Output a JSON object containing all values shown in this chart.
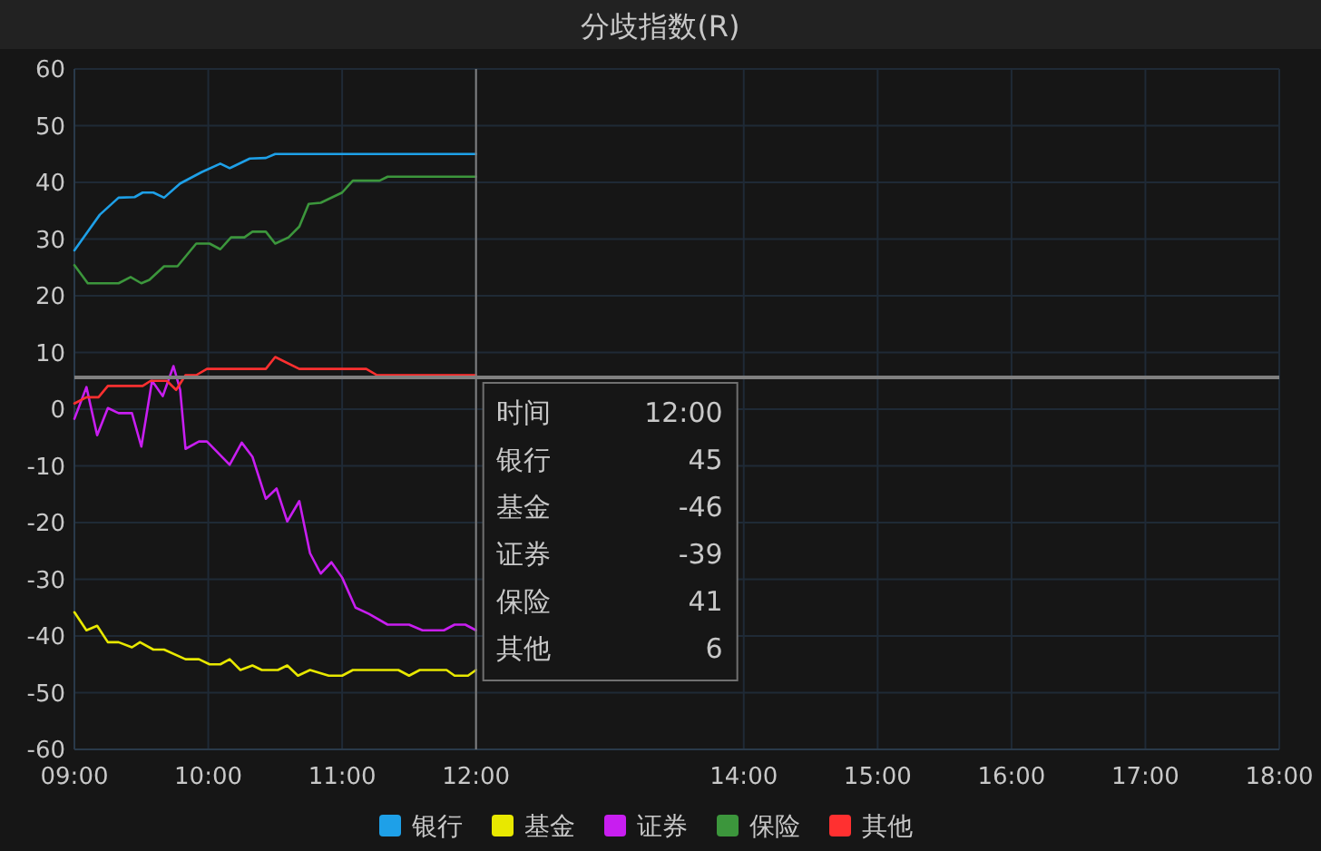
{
  "chart_data": {
    "type": "line",
    "title": "分歧指数(R)",
    "xlim": [
      9,
      18
    ],
    "xticks": [
      {
        "value": 9,
        "label": "09:00"
      },
      {
        "value": 10,
        "label": "10:00"
      },
      {
        "value": 11,
        "label": "11:00"
      },
      {
        "value": 12,
        "label": "12:00"
      },
      {
        "value": 14,
        "label": "14:00"
      },
      {
        "value": 15,
        "label": "15:00"
      },
      {
        "value": 16,
        "label": "16:00"
      },
      {
        "value": 17,
        "label": "17:00"
      },
      {
        "value": 18,
        "label": "18:00"
      }
    ],
    "ylim": [
      -60,
      60
    ],
    "yticks": [
      -60,
      -50,
      -40,
      -30,
      -20,
      -10,
      0,
      10,
      20,
      30,
      40,
      50,
      60
    ],
    "grid": true,
    "legend": "bottom",
    "marker": "none",
    "line_style": "solid",
    "ref_lines": [
      {
        "axis": "x",
        "value": 12,
        "color": "#808080"
      },
      {
        "axis": "y",
        "value": 5.6,
        "color": "#808080"
      }
    ],
    "annotations": [
      "时间 12:00",
      "银行 45",
      "基金 -46",
      "证券 -39",
      "保险 41",
      "其他 6"
    ],
    "series": [
      {
        "name": "银行",
        "color": "#1ea0e8",
        "x": [
          9,
          9.19,
          9.33,
          9.45,
          9.51,
          9.59,
          9.67,
          9.79,
          9.95,
          10.09,
          10.16,
          10.31,
          10.43,
          10.5,
          12
        ],
        "values": [
          28,
          34.3,
          37.3,
          37.4,
          38.2,
          38.2,
          37.3,
          39.8,
          41.8,
          43.3,
          42.5,
          44.2,
          44.3,
          45,
          45
        ]
      },
      {
        "name": "基金",
        "color": "#e8e800",
        "x": [
          9,
          9.09,
          9.17,
          9.25,
          9.33,
          9.43,
          9.49,
          9.59,
          9.67,
          9.83,
          9.93,
          10.01,
          10.09,
          10.16,
          10.24,
          10.33,
          10.4,
          10.52,
          10.59,
          10.67,
          10.76,
          10.9,
          11,
          11.08,
          11.42,
          11.5,
          11.58,
          11.78,
          11.84,
          11.94,
          12
        ],
        "values": [
          -35.8,
          -39,
          -38.2,
          -41.1,
          -41.1,
          -42,
          -41.1,
          -42.4,
          -42.4,
          -44.1,
          -44.1,
          -45,
          -45,
          -44.1,
          -46,
          -45.2,
          -46,
          -46,
          -45.2,
          -47,
          -46,
          -47,
          -47,
          -46,
          -46,
          -47,
          -46,
          -46,
          -47,
          -47,
          -46
        ]
      },
      {
        "name": "证券",
        "color": "#c81ef0",
        "x": [
          9,
          9.09,
          9.17,
          9.25,
          9.33,
          9.43,
          9.5,
          9.58,
          9.66,
          9.74,
          9.79,
          9.83,
          9.93,
          9.99,
          10.16,
          10.25,
          10.33,
          10.43,
          10.51,
          10.59,
          10.68,
          10.76,
          10.84,
          10.92,
          11,
          11.1,
          11.2,
          11.34,
          11.5,
          11.6,
          11.76,
          11.84,
          11.92,
          12
        ],
        "values": [
          -1.7,
          3.9,
          -4.6,
          0.2,
          -0.7,
          -0.7,
          -6.6,
          5,
          2.3,
          7.6,
          3.4,
          -7,
          -5.7,
          -5.7,
          -9.8,
          -5.9,
          -8.4,
          -15.8,
          -14,
          -19.8,
          -16.2,
          -25.4,
          -29,
          -27,
          -29.7,
          -35,
          -36.1,
          -38,
          -38,
          -39,
          -39,
          -38,
          -38,
          -39
        ]
      },
      {
        "name": "保险",
        "color": "#3c963c",
        "x": [
          9,
          9.1,
          9.33,
          9.42,
          9.5,
          9.56,
          9.67,
          9.77,
          9.91,
          10.01,
          10.09,
          10.17,
          10.27,
          10.33,
          10.43,
          10.5,
          10.6,
          10.68,
          10.75,
          10.84,
          11,
          11.08,
          11.28,
          11.34,
          12
        ],
        "values": [
          25.4,
          22.2,
          22.2,
          23.3,
          22.2,
          22.8,
          25.2,
          25.2,
          29.2,
          29.2,
          28.2,
          30.3,
          30.3,
          31.3,
          31.3,
          29.2,
          30.3,
          32.2,
          36.2,
          36.4,
          38.2,
          40.3,
          40.3,
          41,
          41
        ]
      },
      {
        "name": "其他",
        "color": "#ff3030",
        "x": [
          9,
          9.09,
          9.18,
          9.25,
          9.51,
          9.57,
          9.69,
          9.76,
          9.83,
          9.91,
          9.99,
          10.43,
          10.5,
          10.68,
          11.18,
          11.26,
          12
        ],
        "values": [
          1,
          2.1,
          2.1,
          4.1,
          4.1,
          5,
          5,
          3.4,
          6,
          6,
          7.1,
          7.1,
          9.2,
          7.1,
          7.1,
          6,
          6
        ]
      }
    ]
  }
}
